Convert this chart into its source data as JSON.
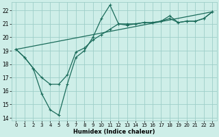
{
  "xlabel": "Humidex (Indice chaleur)",
  "bg_color": "#ceeee8",
  "grid_color": "#9ecec8",
  "line_color": "#1a6b5a",
  "x_range": [
    -0.5,
    23.5
  ],
  "y_range": [
    13.8,
    22.6
  ],
  "yticks": [
    14,
    15,
    16,
    17,
    18,
    19,
    20,
    21,
    22
  ],
  "xticks": [
    0,
    1,
    2,
    3,
    4,
    5,
    6,
    7,
    8,
    9,
    10,
    11,
    12,
    13,
    14,
    15,
    16,
    17,
    18,
    19,
    20,
    21,
    22,
    23
  ],
  "line1_x": [
    0,
    1,
    2,
    3,
    4,
    5,
    6,
    7,
    8,
    9,
    10,
    11,
    12,
    13,
    14,
    15,
    16,
    17,
    18,
    19,
    20,
    21,
    22,
    23
  ],
  "line1_y": [
    19.1,
    18.5,
    17.7,
    15.8,
    14.6,
    14.2,
    16.5,
    18.5,
    19.0,
    20.0,
    21.4,
    22.4,
    21.0,
    20.9,
    21.0,
    21.1,
    21.1,
    21.2,
    21.6,
    21.1,
    21.2,
    21.2,
    21.4,
    21.9
  ],
  "line2_x": [
    0,
    1,
    2,
    3,
    4,
    5,
    6,
    7,
    8,
    9,
    10,
    11,
    12,
    13,
    14,
    15,
    16,
    17,
    18,
    19,
    20,
    21,
    22,
    23
  ],
  "line2_y": [
    19.1,
    18.5,
    17.7,
    17.0,
    16.5,
    16.5,
    17.2,
    18.9,
    19.2,
    19.8,
    20.2,
    20.6,
    21.0,
    21.0,
    21.0,
    21.1,
    21.1,
    21.2,
    21.4,
    21.1,
    21.2,
    21.2,
    21.4,
    21.9
  ],
  "line3_x": [
    0,
    23
  ],
  "line3_y": [
    19.1,
    21.9
  ]
}
